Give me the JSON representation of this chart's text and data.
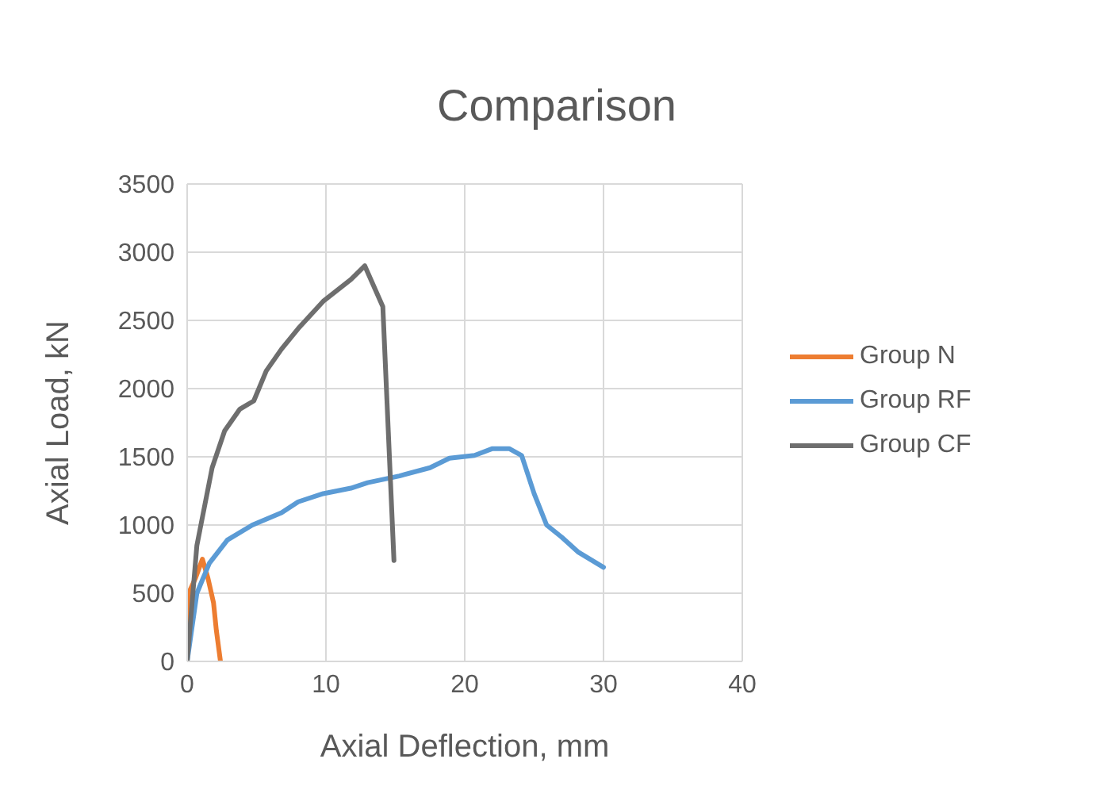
{
  "chart_data": {
    "type": "line",
    "title": "Comparison",
    "xlabel": "Axial Deflection, mm",
    "ylabel": "Axial Load, kN",
    "xlim": [
      0,
      40
    ],
    "xticks": [
      0,
      10,
      20,
      30,
      40
    ],
    "ylim": [
      0,
      3500
    ],
    "yticks": [
      0,
      500,
      1000,
      1500,
      2000,
      2500,
      3000,
      3500
    ],
    "grid": true,
    "legend": "right",
    "marker": "none",
    "line_style": "solid",
    "series": [
      {
        "name": "Group N",
        "color": "#ed7d31",
        "x": [
          0,
          0.1,
          0.6,
          1.1,
          1.5,
          1.9,
          2.1,
          2.4
        ],
        "values": [
          0,
          500,
          610,
          750,
          610,
          430,
          230,
          0
        ]
      },
      {
        "name": "Group RF",
        "color": "#5b9bd5",
        "x": [
          0,
          0.7,
          1.6,
          2.9,
          4.7,
          6.8,
          8,
          9.8,
          11.8,
          13,
          15.3,
          17.5,
          18.9,
          20.7,
          22,
          23.2,
          24.1,
          25,
          25.9,
          27,
          28.2,
          30
        ],
        "values": [
          0,
          500,
          720,
          890,
          1000,
          1090,
          1170,
          1230,
          1270,
          1310,
          1360,
          1420,
          1490,
          1510,
          1560,
          1560,
          1510,
          1230,
          1000,
          910,
          800,
          690
        ]
      },
      {
        "name": "Group CF",
        "color": "#6e6e6e",
        "x": [
          0,
          0.7,
          1.8,
          2.7,
          3.8,
          4.8,
          5.7,
          6.8,
          8,
          9.8,
          11.8,
          12.8,
          14.1,
          14.9
        ],
        "values": [
          0,
          850,
          1420,
          1690,
          1850,
          1910,
          2130,
          2290,
          2440,
          2640,
          2800,
          2900,
          2600,
          740
        ]
      }
    ]
  }
}
